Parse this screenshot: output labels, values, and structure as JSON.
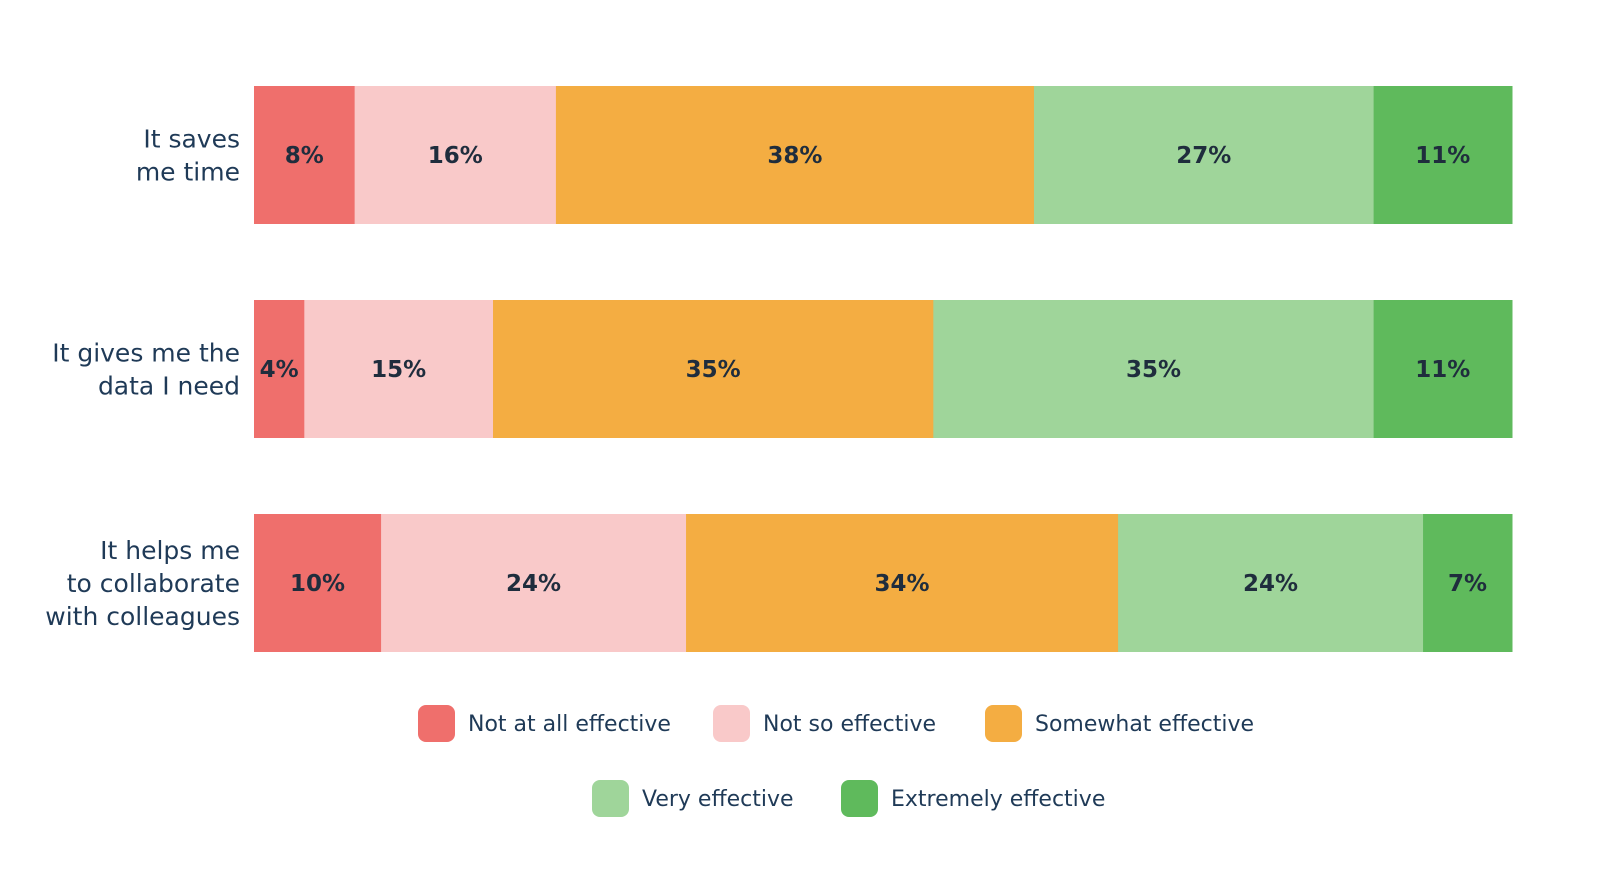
{
  "chart_data": {
    "type": "bar",
    "orientation": "horizontal",
    "stacked": true,
    "categories": [
      [
        "It saves",
        "me time"
      ],
      [
        "It gives me the",
        "data I need"
      ],
      [
        "It helps me",
        "to collaborate",
        "with colleagues"
      ]
    ],
    "series": [
      {
        "name": "Not at all effective",
        "color": "#ef6f6c",
        "values": [
          8,
          4,
          10
        ],
        "labels": [
          "8%",
          "4%",
          "10%"
        ]
      },
      {
        "name": "Not so effective",
        "color": "#f9c9c9",
        "values": [
          16,
          15,
          24
        ],
        "labels": [
          "16%",
          "15%",
          "24%"
        ]
      },
      {
        "name": "Somewhat effective",
        "color": "#f4ad42",
        "values": [
          38,
          35,
          34
        ],
        "labels": [
          "38%",
          "35%",
          "34%"
        ]
      },
      {
        "name": "Very effective",
        "color": "#9fd59a",
        "values": [
          27,
          35,
          24
        ],
        "labels": [
          "27%",
          "35%",
          "24%"
        ]
      },
      {
        "name": "Extremely effective",
        "color": "#5fba5c",
        "values": [
          11,
          11,
          7
        ],
        "labels": [
          "11%",
          "11%",
          "7%"
        ]
      }
    ],
    "legend": {
      "position": "bottom",
      "rows": [
        [
          "Not at all effective",
          "Not so effective",
          "Somewhat effective"
        ],
        [
          "Very effective",
          "Extremely effective"
        ]
      ]
    },
    "grid": false,
    "title": "",
    "xlabel": "",
    "ylabel": ""
  }
}
